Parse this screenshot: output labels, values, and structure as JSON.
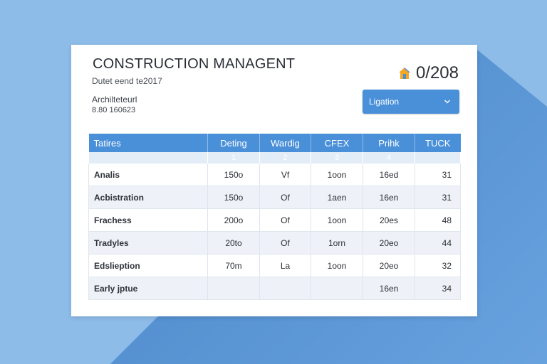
{
  "header": {
    "title": "CONSTRUCTION MANAGENT",
    "subtitle": "Dutet eend te2017",
    "arch_label": "Archilteteurl",
    "arch_code": "8.80 160623",
    "counter": "0/208",
    "counter_icon": "house-icon"
  },
  "dropdown": {
    "value": "Ligation",
    "icon": "chevron-down-icon"
  },
  "colors": {
    "accent": "#4a90d9",
    "background": "#8dbce8",
    "row_alt": "#eef2f8"
  },
  "table": {
    "headers": [
      "Tatires",
      "Deting",
      "Wardig",
      "CFEX",
      "Prihk",
      "TUCK"
    ],
    "subheaders": [
      "",
      "1",
      "2",
      "3",
      "4",
      ""
    ],
    "rows": [
      [
        "Analis",
        "150o",
        "Vf",
        "1oon",
        "16ed",
        "31"
      ],
      [
        "Acbistration",
        "150o",
        "Of",
        "1aen",
        "16en",
        "31"
      ],
      [
        "Frachess",
        "200o",
        "Of",
        "1oon",
        "20es",
        "48"
      ],
      [
        "Tradyles",
        "20to",
        "Of",
        "1orn",
        "20eo",
        "44"
      ],
      [
        "Edslieption",
        "70m",
        "La",
        "1oon",
        "20eo",
        "32"
      ],
      [
        "Early jptue",
        "",
        "",
        "",
        "16en",
        "34"
      ]
    ]
  }
}
